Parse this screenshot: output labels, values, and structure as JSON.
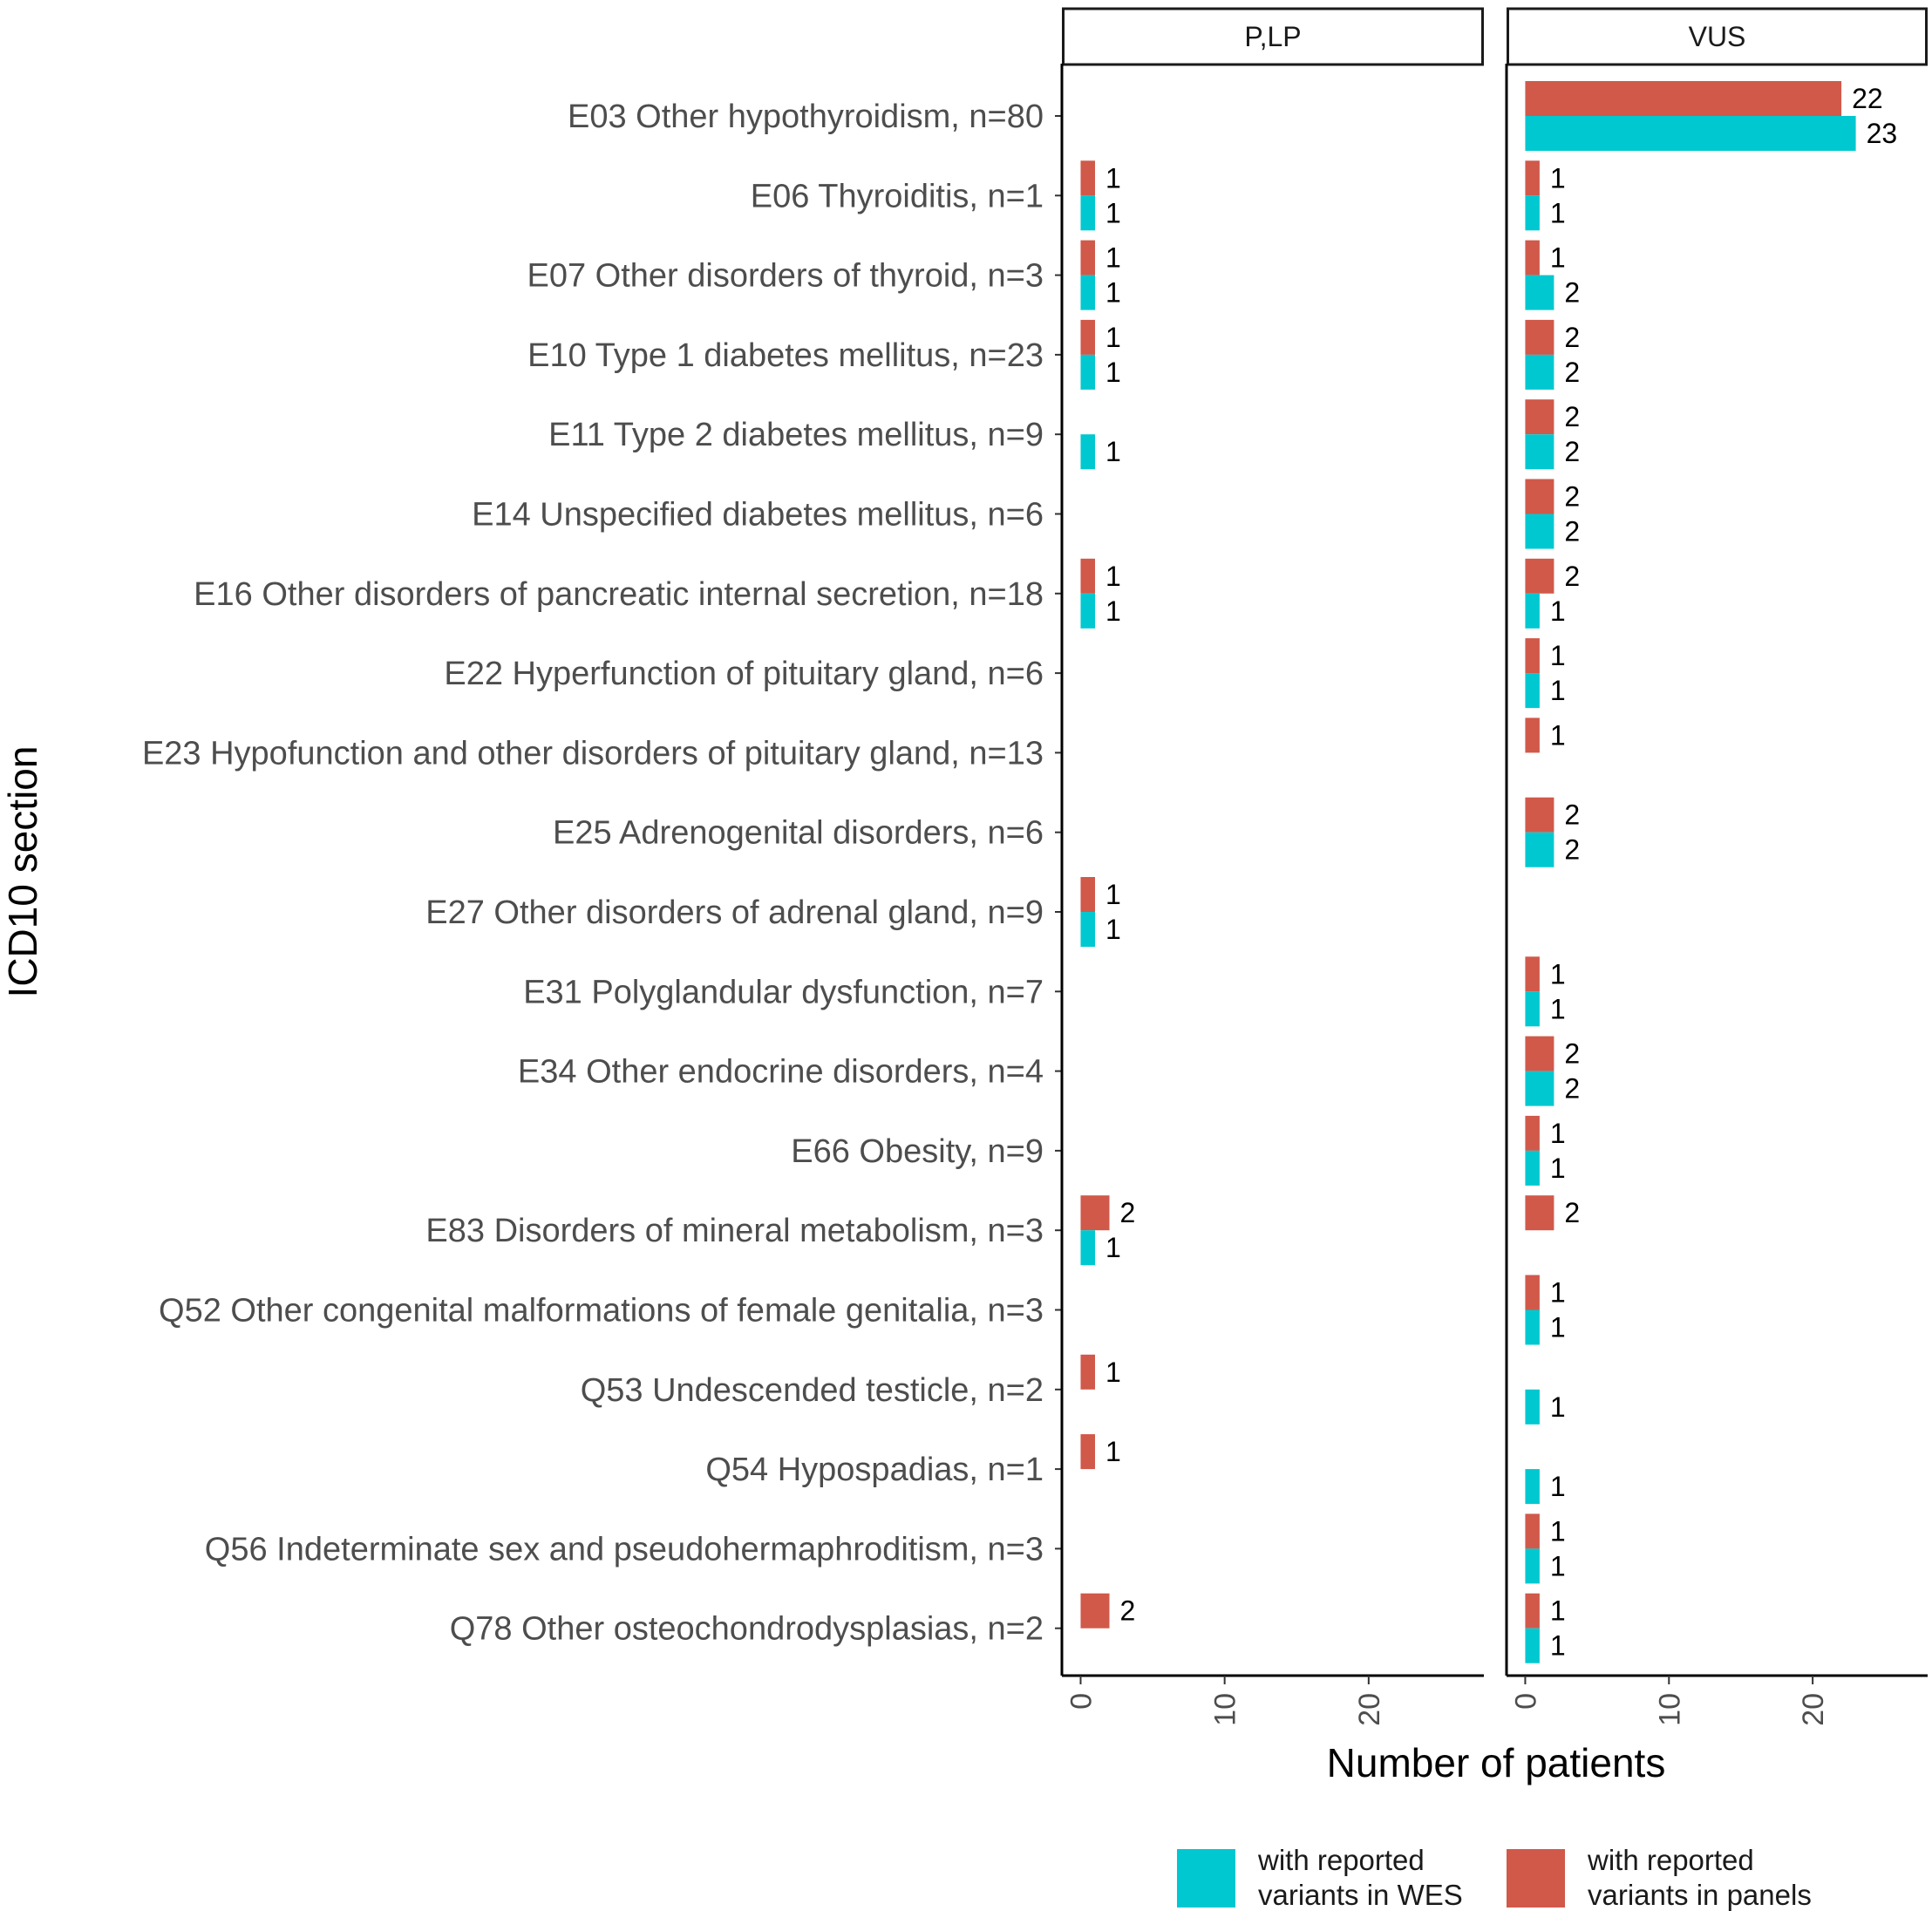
{
  "chart_data": {
    "type": "bar",
    "orientation": "horizontal",
    "ylabel": "ICD10 section",
    "xlabel": "Number of patients",
    "xlim": [
      -1.3,
      28
    ],
    "xticks": [
      0,
      10,
      20
    ],
    "xtick_labels": [
      "0",
      "10",
      "20"
    ],
    "categories": [
      "E03 Other hypothyroidism, n=80",
      "E06 Thyroiditis, n=1",
      "E07 Other disorders of thyroid, n=3",
      "E10 Type 1 diabetes mellitus, n=23",
      "E11 Type 2 diabetes mellitus, n=9",
      "E14 Unspecified diabetes mellitus, n=6",
      "E16 Other disorders of pancreatic internal secretion, n=18",
      "E22 Hyperfunction of pituitary gland, n=6",
      "E23 Hypofunction and other disorders of pituitary gland, n=13",
      "E25 Adrenogenital disorders, n=6",
      "E27 Other disorders of adrenal gland, n=9",
      "E31 Polyglandular dysfunction, n=7",
      "E34 Other endocrine disorders, n=4",
      "E66 Obesity, n=9",
      "E83 Disorders of mineral metabolism, n=3",
      "Q52 Other congenital malformations of female genitalia, n=3",
      "Q53 Undescended testicle, n=2",
      "Q54 Hypospadias, n=1",
      "Q56 Indeterminate sex and pseudohermaphroditism, n=3",
      "Q78 Other osteochondrodysplasias, n=2"
    ],
    "facets": [
      {
        "name": "P,LP",
        "series": [
          {
            "name": "with reported variants in panels",
            "color": "#D0594A",
            "values": [
              null,
              1,
              1,
              1,
              null,
              null,
              1,
              null,
              null,
              null,
              1,
              null,
              null,
              null,
              2,
              null,
              1,
              1,
              null,
              2
            ]
          },
          {
            "name": "with reported variants in WES",
            "color": "#00C8D0",
            "values": [
              null,
              1,
              1,
              1,
              1,
              null,
              1,
              null,
              null,
              null,
              1,
              null,
              null,
              null,
              1,
              null,
              null,
              null,
              null,
              null
            ]
          }
        ]
      },
      {
        "name": "VUS",
        "series": [
          {
            "name": "with reported variants in panels",
            "color": "#D0594A",
            "values": [
              22,
              1,
              1,
              2,
              2,
              2,
              2,
              1,
              1,
              2,
              null,
              1,
              2,
              1,
              2,
              1,
              null,
              null,
              1,
              1
            ]
          },
          {
            "name": "with reported variants in WES",
            "color": "#00C8D0",
            "values": [
              23,
              1,
              2,
              2,
              2,
              2,
              1,
              1,
              null,
              2,
              null,
              1,
              2,
              1,
              null,
              1,
              1,
              1,
              1,
              1
            ]
          }
        ]
      }
    ],
    "legend": {
      "position": "bottom",
      "entries": [
        {
          "label_lines": [
            "with reported",
            "variants in WES"
          ],
          "color": "#00C8D0"
        },
        {
          "label_lines": [
            "with reported",
            "variants in panels"
          ],
          "color": "#D0594A"
        }
      ]
    }
  }
}
